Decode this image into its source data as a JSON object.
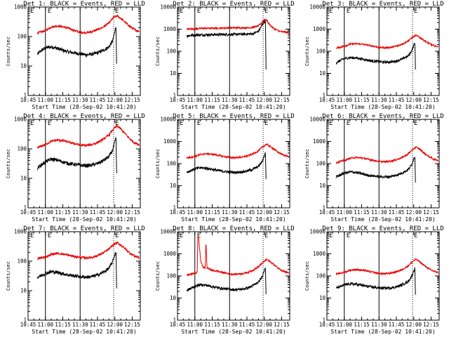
{
  "figure": {
    "x_tick_labels": [
      "10:45",
      "11:00",
      "11:15",
      "11:30",
      "11:45",
      "12:00",
      "12:15"
    ],
    "x_tick_values": [
      0,
      15,
      30,
      45,
      60,
      75,
      90
    ],
    "xlim": [
      0,
      97
    ],
    "y_tick_labels": [
      "1",
      "10",
      "100",
      "1000",
      "10000"
    ],
    "y_tick_values": [
      1,
      10,
      100,
      1000,
      10000
    ],
    "ylabel": "Counts/sec",
    "xlabel": "Start Time (28-Sep-02 10:41:20)",
    "colors": {
      "events": "#000000",
      "lld": "#ee0000"
    },
    "markers": {
      "attenuator_in_x": 74,
      "marker_label": "E",
      "vline1_x": 15,
      "vline2_x": 45
    }
  },
  "chart_data": [
    {
      "type": "line",
      "title": "Det 1: BLACK = Events, RED = LLD",
      "ylim": [
        1,
        1000
      ],
      "yticks": [
        1,
        10,
        100,
        1000
      ],
      "series": [
        {
          "name": "Events",
          "color": "#000000",
          "x": [
            8,
            12,
            16,
            20,
            25,
            30,
            35,
            40,
            45,
            50,
            55,
            60,
            65,
            70,
            73,
            75,
            76,
            76.5
          ],
          "y": [
            25,
            35,
            42,
            45,
            40,
            34,
            30,
            28,
            26,
            24,
            25,
            28,
            34,
            45,
            70,
            140,
            220,
            12
          ]
        },
        {
          "name": "LLD",
          "color": "#ee0000",
          "x": [
            8,
            15,
            20,
            25,
            30,
            35,
            40,
            45,
            50,
            55,
            60,
            65,
            70,
            74,
            77,
            80,
            84,
            88,
            92,
            96
          ],
          "y": [
            130,
            160,
            210,
            230,
            215,
            190,
            160,
            140,
            135,
            145,
            170,
            210,
            290,
            450,
            500,
            420,
            300,
            220,
            170,
            150
          ]
        }
      ]
    },
    {
      "type": "line",
      "title": "Det 2: BLACK = Events, RED = LLD",
      "ylim": [
        1,
        10000
      ],
      "yticks": [
        1,
        10,
        100,
        1000,
        10000
      ],
      "series": [
        {
          "name": "Events",
          "color": "#000000",
          "x": [
            8,
            15,
            25,
            35,
            45,
            55,
            60,
            65,
            70,
            73,
            75,
            76,
            76.5
          ],
          "y": [
            500,
            540,
            560,
            570,
            580,
            590,
            600,
            620,
            800,
            1500,
            2200,
            2400,
            15
          ]
        },
        {
          "name": "LLD",
          "color": "#ee0000",
          "x": [
            8,
            15,
            25,
            35,
            45,
            55,
            60,
            65,
            70,
            73,
            75,
            77,
            80,
            84,
            88,
            92,
            96
          ],
          "y": [
            1000,
            1050,
            1100,
            1100,
            1150,
            1150,
            1150,
            1200,
            1400,
            2000,
            2800,
            2500,
            1500,
            1000,
            800,
            750,
            700
          ]
        }
      ]
    },
    {
      "type": "line",
      "title": "Det 3: BLACK = Events, RED = LLD",
      "ylim": [
        1,
        10000
      ],
      "yticks": [
        1,
        10,
        100,
        1000,
        10000
      ],
      "series": [
        {
          "name": "Events",
          "color": "#000000",
          "x": [
            8,
            12,
            16,
            20,
            25,
            30,
            35,
            40,
            45,
            50,
            55,
            60,
            65,
            70,
            73,
            75,
            76,
            76.5
          ],
          "y": [
            30,
            40,
            48,
            52,
            50,
            45,
            40,
            36,
            34,
            32,
            33,
            36,
            45,
            60,
            100,
            180,
            250,
            15
          ]
        },
        {
          "name": "LLD",
          "color": "#ee0000",
          "x": [
            8,
            15,
            20,
            25,
            30,
            35,
            40,
            45,
            50,
            55,
            60,
            65,
            70,
            74,
            77,
            80,
            84,
            88,
            92,
            96
          ],
          "y": [
            140,
            170,
            210,
            220,
            210,
            190,
            170,
            150,
            145,
            150,
            170,
            210,
            290,
            430,
            520,
            430,
            310,
            230,
            180,
            160
          ]
        }
      ]
    },
    {
      "type": "line",
      "title": "Det 4: BLACK = Events, RED = LLD",
      "ylim": [
        1,
        1000
      ],
      "yticks": [
        1,
        10,
        100,
        1000
      ],
      "series": [
        {
          "name": "Events",
          "color": "#000000",
          "x": [
            8,
            12,
            16,
            20,
            25,
            30,
            35,
            40,
            45,
            50,
            55,
            60,
            65,
            70,
            73,
            75,
            76,
            76.5
          ],
          "y": [
            22,
            30,
            38,
            45,
            42,
            36,
            32,
            30,
            28,
            27,
            28,
            32,
            40,
            55,
            90,
            170,
            230,
            15
          ]
        },
        {
          "name": "LLD",
          "color": "#ee0000",
          "x": [
            8,
            15,
            20,
            25,
            30,
            35,
            40,
            45,
            50,
            55,
            60,
            65,
            70,
            74,
            77,
            80,
            84,
            88,
            92,
            96
          ],
          "y": [
            110,
            140,
            180,
            200,
            190,
            170,
            150,
            135,
            130,
            140,
            165,
            210,
            300,
            480,
            600,
            480,
            320,
            220,
            160,
            140
          ]
        }
      ]
    },
    {
      "type": "line",
      "title": "Det 5: BLACK = Events, RED = LLD",
      "ylim": [
        1,
        10000
      ],
      "yticks": [
        1,
        10,
        100,
        1000,
        10000
      ],
      "series": [
        {
          "name": "Events",
          "color": "#000000",
          "x": [
            8,
            12,
            16,
            20,
            25,
            30,
            35,
            40,
            45,
            50,
            55,
            60,
            65,
            70,
            73,
            75,
            76,
            76.5
          ],
          "y": [
            40,
            50,
            60,
            65,
            62,
            55,
            48,
            44,
            42,
            40,
            42,
            46,
            55,
            75,
            120,
            220,
            300,
            20
          ]
        },
        {
          "name": "LLD",
          "color": "#ee0000",
          "x": [
            8,
            15,
            20,
            25,
            30,
            35,
            40,
            45,
            50,
            55,
            60,
            65,
            70,
            74,
            77,
            80,
            84,
            88,
            92,
            96
          ],
          "y": [
            180,
            210,
            260,
            280,
            265,
            240,
            210,
            190,
            185,
            195,
            220,
            270,
            380,
            600,
            750,
            600,
            420,
            300,
            240,
            210
          ]
        }
      ]
    },
    {
      "type": "line",
      "title": "Det 6: BLACK = Events, RED = LLD",
      "ylim": [
        1,
        10000
      ],
      "yticks": [
        1,
        10,
        100,
        1000,
        10000
      ],
      "series": [
        {
          "name": "Events",
          "color": "#000000",
          "x": [
            8,
            12,
            16,
            20,
            25,
            30,
            35,
            40,
            45,
            50,
            55,
            60,
            65,
            70,
            73,
            75,
            76,
            76.5
          ],
          "y": [
            25,
            32,
            38,
            42,
            40,
            35,
            30,
            28,
            26,
            25,
            26,
            30,
            38,
            52,
            85,
            160,
            220,
            14
          ]
        },
        {
          "name": "LLD",
          "color": "#ee0000",
          "x": [
            8,
            15,
            20,
            25,
            30,
            35,
            40,
            45,
            50,
            55,
            60,
            65,
            70,
            74,
            77,
            80,
            84,
            88,
            92,
            96
          ],
          "y": [
            110,
            140,
            175,
            190,
            180,
            160,
            140,
            125,
            120,
            130,
            150,
            190,
            270,
            430,
            560,
            450,
            300,
            210,
            160,
            140
          ]
        }
      ]
    },
    {
      "type": "line",
      "title": "Det 7: BLACK = Events, RED = LLD",
      "ylim": [
        1,
        1000
      ],
      "yticks": [
        1,
        10,
        100,
        1000
      ],
      "series": [
        {
          "name": "Events",
          "color": "#000000",
          "x": [
            8,
            12,
            16,
            20,
            25,
            30,
            35,
            40,
            45,
            50,
            55,
            60,
            65,
            70,
            73,
            75,
            76,
            76.5
          ],
          "y": [
            28,
            34,
            40,
            44,
            42,
            38,
            34,
            32,
            30,
            29,
            30,
            34,
            42,
            58,
            95,
            170,
            200,
            12
          ]
        },
        {
          "name": "LLD",
          "color": "#ee0000",
          "x": [
            8,
            15,
            20,
            25,
            30,
            35,
            40,
            45,
            50,
            55,
            60,
            65,
            70,
            74,
            77,
            80,
            84,
            88,
            92,
            96
          ],
          "y": [
            120,
            140,
            170,
            185,
            175,
            160,
            145,
            135,
            130,
            135,
            155,
            190,
            260,
            370,
            420,
            360,
            260,
            190,
            150,
            135
          ]
        }
      ]
    },
    {
      "type": "line",
      "title": "Det 8: BLACK = Events, RED = LLD",
      "ylim": [
        1,
        10000
      ],
      "yticks": [
        1,
        10,
        100,
        1000,
        10000
      ],
      "series": [
        {
          "name": "Events",
          "color": "#000000",
          "x": [
            8,
            12,
            16,
            20,
            25,
            30,
            35,
            40,
            45,
            50,
            55,
            60,
            65,
            70,
            73,
            75,
            76,
            76.5
          ],
          "y": [
            22,
            28,
            35,
            40,
            38,
            33,
            29,
            27,
            25,
            24,
            25,
            28,
            36,
            52,
            90,
            180,
            260,
            15
          ]
        },
        {
          "name": "LLD",
          "color": "#ee0000",
          "x": [
            8,
            15,
            17,
            17.6,
            18.2,
            19,
            20,
            22,
            24,
            24.6,
            25.5,
            28,
            30,
            35,
            40,
            45,
            50,
            55,
            60,
            65,
            70,
            74,
            77,
            80,
            84,
            88,
            92,
            96
          ],
          "y": [
            110,
            130,
            150,
            6500,
            5000,
            2000,
            500,
            250,
            220,
            4000,
            230,
            200,
            180,
            160,
            140,
            125,
            120,
            125,
            140,
            180,
            260,
            420,
            550,
            450,
            300,
            210,
            160,
            140
          ]
        }
      ]
    },
    {
      "type": "line",
      "title": "Det 9: BLACK = Events, RED = LLD",
      "ylim": [
        1,
        10000
      ],
      "yticks": [
        1,
        10,
        100,
        1000,
        10000
      ],
      "series": [
        {
          "name": "Events",
          "color": "#000000",
          "x": [
            8,
            12,
            16,
            20,
            25,
            30,
            35,
            40,
            45,
            50,
            55,
            60,
            65,
            70,
            73,
            75,
            76,
            76.5
          ],
          "y": [
            28,
            34,
            40,
            44,
            42,
            38,
            34,
            31,
            29,
            28,
            29,
            32,
            40,
            55,
            90,
            170,
            220,
            14
          ]
        },
        {
          "name": "LLD",
          "color": "#ee0000",
          "x": [
            8,
            15,
            20,
            25,
            30,
            35,
            40,
            45,
            50,
            55,
            60,
            65,
            70,
            74,
            77,
            80,
            84,
            88,
            92,
            96
          ],
          "y": [
            120,
            145,
            180,
            195,
            185,
            165,
            145,
            130,
            125,
            135,
            155,
            195,
            280,
            450,
            560,
            450,
            300,
            210,
            165,
            145
          ]
        }
      ]
    }
  ]
}
